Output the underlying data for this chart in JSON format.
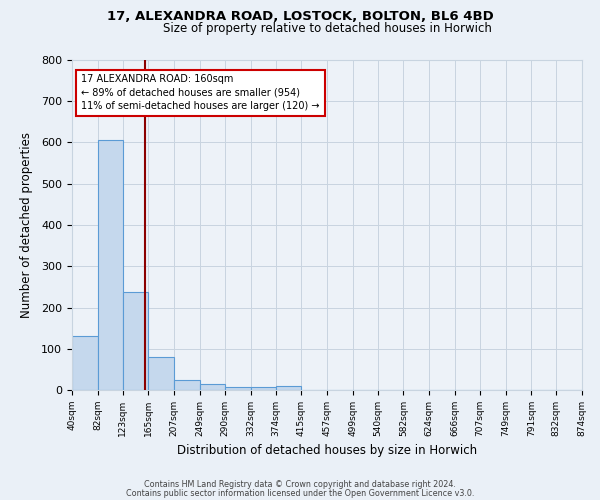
{
  "title1": "17, ALEXANDRA ROAD, LOSTOCK, BOLTON, BL6 4BD",
  "title2": "Size of property relative to detached houses in Horwich",
  "xlabel": "Distribution of detached houses by size in Horwich",
  "ylabel": "Number of detached properties",
  "bin_edges": [
    40,
    82,
    123,
    165,
    207,
    249,
    290,
    332,
    374,
    415,
    457,
    499,
    540,
    582,
    624,
    666,
    707,
    749,
    791,
    832,
    874
  ],
  "bar_heights": [
    130,
    605,
    238,
    80,
    25,
    14,
    8,
    8,
    9,
    0,
    0,
    0,
    0,
    0,
    0,
    0,
    0,
    0,
    0,
    0
  ],
  "bar_color": "#c5d8ed",
  "bar_edge_color": "#5b9bd5",
  "property_line_x": 160,
  "property_line_color": "#8b0000",
  "annotation_line1": "17 ALEXANDRA ROAD: 160sqm",
  "annotation_line2": "← 89% of detached houses are smaller (954)",
  "annotation_line3": "11% of semi-detached houses are larger (120) →",
  "annotation_box_color": "white",
  "annotation_box_edge": "#cc0000",
  "annotation_fontsize": 7.0,
  "ylim": [
    0,
    800
  ],
  "yticks": [
    0,
    100,
    200,
    300,
    400,
    500,
    600,
    700,
    800
  ],
  "xtick_labels": [
    "40sqm",
    "82sqm",
    "123sqm",
    "165sqm",
    "207sqm",
    "249sqm",
    "290sqm",
    "332sqm",
    "374sqm",
    "415sqm",
    "457sqm",
    "499sqm",
    "540sqm",
    "582sqm",
    "624sqm",
    "666sqm",
    "707sqm",
    "749sqm",
    "791sqm",
    "832sqm",
    "874sqm"
  ],
  "footer1": "Contains HM Land Registry data © Crown copyright and database right 2024.",
  "footer2": "Contains public sector information licensed under the Open Government Licence v3.0.",
  "bg_color": "#eaf0f7",
  "plot_bg_color": "#edf2f8",
  "grid_color": "#c8d4e0",
  "title1_fontsize": 9.5,
  "title2_fontsize": 8.5
}
